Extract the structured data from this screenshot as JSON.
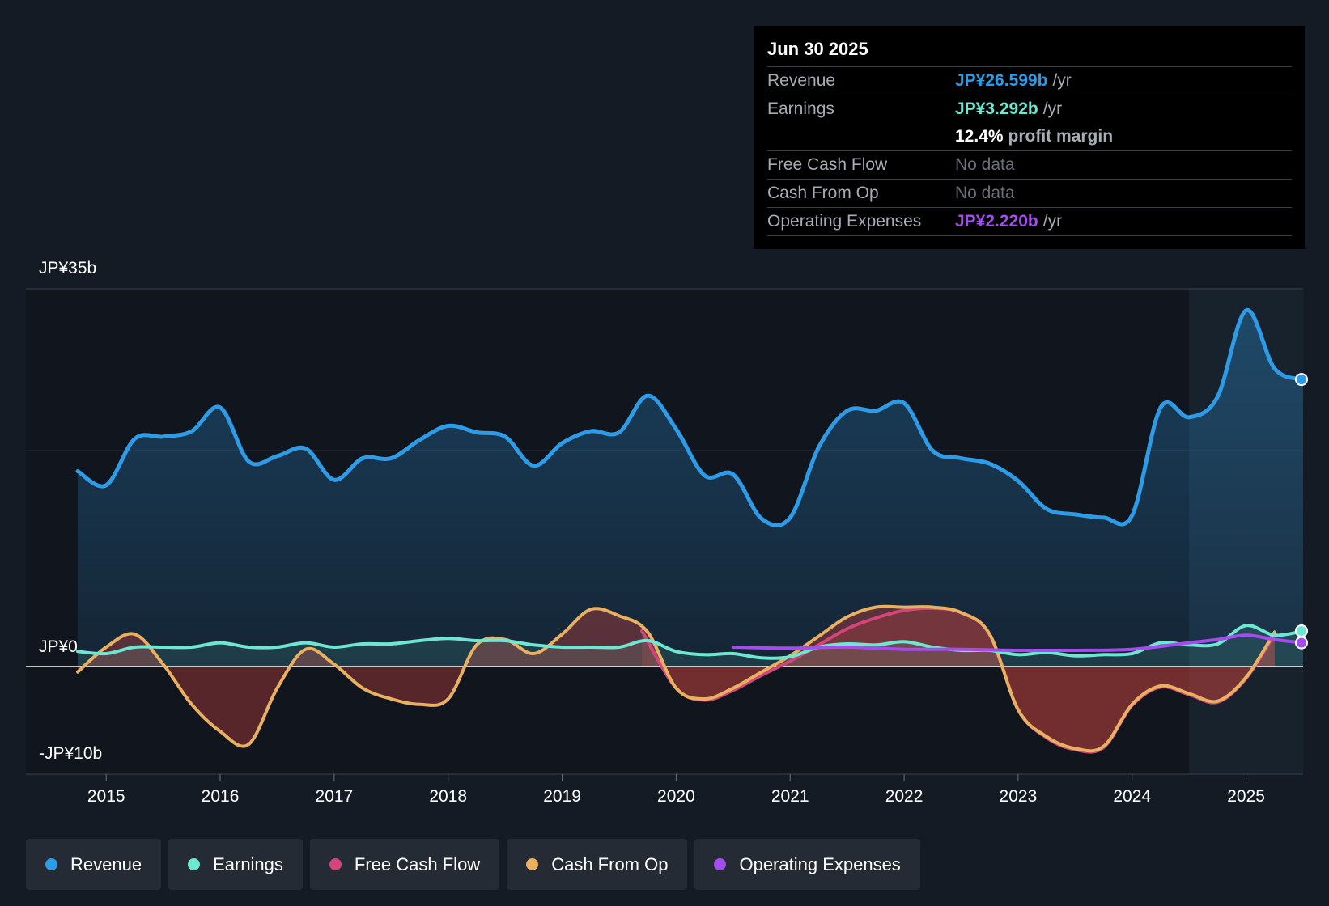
{
  "tooltip": {
    "date": "Jun 30 2025",
    "revenue_label": "Revenue",
    "revenue_value": "JP¥26.599b",
    "earnings_label": "Earnings",
    "earnings_value": "JP¥3.292b",
    "margin_value": "12.4%",
    "margin_label": "profit margin",
    "fcf_label": "Free Cash Flow",
    "fcf_value": "No data",
    "cfo_label": "Cash From Op",
    "cfo_value": "No data",
    "opex_label": "Operating Expenses",
    "opex_value": "JP¥2.220b",
    "unit": "/yr"
  },
  "legend": {
    "revenue": "Revenue",
    "earnings": "Earnings",
    "fcf": "Free Cash Flow",
    "cfo": "Cash From Op",
    "opex": "Operating Expenses"
  },
  "colors": {
    "revenue": "#2d9be6",
    "earnings": "#6ee6d1",
    "fcf": "#d4467a",
    "cfo": "#e8b060",
    "opex": "#a44cf0",
    "background": "#151b24"
  },
  "chart_data": {
    "type": "line",
    "title": "",
    "y_axis_labels": [
      "JP¥35b",
      "JP¥0",
      "-JP¥10b"
    ],
    "ylim": [
      -10,
      35
    ],
    "xlim": [
      2014.75,
      2025.5
    ],
    "x_ticks": [
      "2015",
      "2016",
      "2017",
      "2018",
      "2019",
      "2020",
      "2021",
      "2022",
      "2023",
      "2024",
      "2025"
    ],
    "forecast_region_start": 2024.5,
    "series": [
      {
        "name": "Revenue",
        "key": "revenue",
        "points": [
          [
            2014.75,
            18.1
          ],
          [
            2015.0,
            16.8
          ],
          [
            2015.25,
            21.1
          ],
          [
            2015.5,
            21.3
          ],
          [
            2015.75,
            21.8
          ],
          [
            2016.0,
            24.0
          ],
          [
            2016.25,
            19.0
          ],
          [
            2016.5,
            19.5
          ],
          [
            2016.75,
            20.2
          ],
          [
            2017.0,
            17.3
          ],
          [
            2017.25,
            19.3
          ],
          [
            2017.5,
            19.3
          ],
          [
            2017.75,
            21.0
          ],
          [
            2018.0,
            22.3
          ],
          [
            2018.25,
            21.7
          ],
          [
            2018.5,
            21.3
          ],
          [
            2018.75,
            18.6
          ],
          [
            2019.0,
            20.7
          ],
          [
            2019.25,
            21.8
          ],
          [
            2019.5,
            21.7
          ],
          [
            2019.75,
            25.1
          ],
          [
            2020.0,
            22.0
          ],
          [
            2020.25,
            17.7
          ],
          [
            2020.5,
            17.8
          ],
          [
            2020.75,
            13.7
          ],
          [
            2021.0,
            13.8
          ],
          [
            2021.25,
            20.3
          ],
          [
            2021.5,
            23.7
          ],
          [
            2021.75,
            23.7
          ],
          [
            2022.0,
            24.4
          ],
          [
            2022.25,
            20.0
          ],
          [
            2022.5,
            19.3
          ],
          [
            2022.75,
            18.8
          ],
          [
            2023.0,
            17.2
          ],
          [
            2023.25,
            14.6
          ],
          [
            2023.5,
            14.1
          ],
          [
            2023.75,
            13.8
          ],
          [
            2024.0,
            14.0
          ],
          [
            2024.25,
            24.0
          ],
          [
            2024.5,
            23.1
          ],
          [
            2024.75,
            25.0
          ],
          [
            2025.0,
            33.0
          ],
          [
            2025.25,
            27.6
          ],
          [
            2025.5,
            26.6
          ]
        ]
      },
      {
        "name": "Earnings",
        "key": "earnings",
        "points": [
          [
            2014.75,
            1.4
          ],
          [
            2015.0,
            1.2
          ],
          [
            2015.25,
            1.8
          ],
          [
            2015.5,
            1.8
          ],
          [
            2015.75,
            1.8
          ],
          [
            2016.0,
            2.2
          ],
          [
            2016.25,
            1.8
          ],
          [
            2016.5,
            1.8
          ],
          [
            2016.75,
            2.2
          ],
          [
            2017.0,
            1.8
          ],
          [
            2017.25,
            2.1
          ],
          [
            2017.5,
            2.1
          ],
          [
            2017.75,
            2.4
          ],
          [
            2018.0,
            2.6
          ],
          [
            2018.25,
            2.4
          ],
          [
            2018.5,
            2.4
          ],
          [
            2018.75,
            2.0
          ],
          [
            2019.0,
            1.8
          ],
          [
            2019.25,
            1.8
          ],
          [
            2019.5,
            1.8
          ],
          [
            2019.75,
            2.4
          ],
          [
            2020.0,
            1.4
          ],
          [
            2020.25,
            1.1
          ],
          [
            2020.5,
            1.2
          ],
          [
            2020.75,
            0.8
          ],
          [
            2021.0,
            0.9
          ],
          [
            2021.25,
            1.8
          ],
          [
            2021.5,
            2.1
          ],
          [
            2021.75,
            2.0
          ],
          [
            2022.0,
            2.3
          ],
          [
            2022.25,
            1.8
          ],
          [
            2022.5,
            1.5
          ],
          [
            2022.75,
            1.5
          ],
          [
            2023.0,
            1.1
          ],
          [
            2023.25,
            1.3
          ],
          [
            2023.5,
            1.0
          ],
          [
            2023.75,
            1.1
          ],
          [
            2024.0,
            1.2
          ],
          [
            2024.25,
            2.2
          ],
          [
            2024.5,
            2.0
          ],
          [
            2024.75,
            2.1
          ],
          [
            2025.0,
            3.8
          ],
          [
            2025.25,
            2.9
          ],
          [
            2025.5,
            3.3
          ]
        ]
      },
      {
        "name": "Cash From Op",
        "key": "cfo",
        "points": [
          [
            2014.75,
            -0.5
          ],
          [
            2015.0,
            1.8
          ],
          [
            2015.25,
            3.0
          ],
          [
            2015.5,
            0.2
          ],
          [
            2015.75,
            -3.5
          ],
          [
            2016.0,
            -6.0
          ],
          [
            2016.25,
            -7.2
          ],
          [
            2016.5,
            -2.0
          ],
          [
            2016.75,
            1.6
          ],
          [
            2017.0,
            0.2
          ],
          [
            2017.25,
            -2.0
          ],
          [
            2017.5,
            -3.0
          ],
          [
            2017.75,
            -3.5
          ],
          [
            2018.0,
            -3.0
          ],
          [
            2018.25,
            2.0
          ],
          [
            2018.5,
            2.5
          ],
          [
            2018.75,
            1.2
          ],
          [
            2019.0,
            3.0
          ],
          [
            2019.25,
            5.3
          ],
          [
            2019.5,
            4.7
          ],
          [
            2019.75,
            3.2
          ],
          [
            2020.0,
            -2.0
          ],
          [
            2020.25,
            -3.0
          ],
          [
            2020.5,
            -2.0
          ],
          [
            2020.75,
            -0.5
          ],
          [
            2021.0,
            1.0
          ],
          [
            2021.25,
            2.8
          ],
          [
            2021.5,
            4.6
          ],
          [
            2021.75,
            5.5
          ],
          [
            2022.0,
            5.5
          ],
          [
            2022.25,
            5.5
          ],
          [
            2022.5,
            5.0
          ],
          [
            2022.75,
            3.0
          ],
          [
            2023.0,
            -4.0
          ],
          [
            2023.25,
            -6.5
          ],
          [
            2023.5,
            -7.6
          ],
          [
            2023.75,
            -7.4
          ],
          [
            2024.0,
            -3.5
          ],
          [
            2024.25,
            -1.8
          ],
          [
            2024.5,
            -2.5
          ],
          [
            2024.75,
            -3.2
          ],
          [
            2025.0,
            -1.0
          ],
          [
            2025.25,
            3.2
          ]
        ]
      },
      {
        "name": "Free Cash Flow",
        "key": "fcf",
        "points": [
          [
            2019.7,
            3.3
          ],
          [
            2020.0,
            -2.0
          ],
          [
            2020.25,
            -3.1
          ],
          [
            2020.5,
            -2.2
          ],
          [
            2020.75,
            -0.8
          ],
          [
            2021.0,
            0.5
          ],
          [
            2021.25,
            2.0
          ],
          [
            2021.5,
            3.5
          ],
          [
            2021.75,
            4.5
          ],
          [
            2022.0,
            5.2
          ],
          [
            2022.25,
            5.4
          ],
          [
            2022.5,
            5.0
          ],
          [
            2022.75,
            3.0
          ],
          [
            2023.0,
            -4.0
          ],
          [
            2023.25,
            -6.6
          ],
          [
            2023.5,
            -7.7
          ],
          [
            2023.75,
            -7.5
          ],
          [
            2024.0,
            -3.6
          ],
          [
            2024.25,
            -1.9
          ],
          [
            2024.5,
            -2.6
          ],
          [
            2024.75,
            -3.3
          ],
          [
            2025.0,
            -1.1
          ],
          [
            2025.25,
            3.0
          ]
        ]
      },
      {
        "name": "Operating Expenses",
        "key": "opex",
        "points": [
          [
            2020.5,
            1.8
          ],
          [
            2021.0,
            1.7
          ],
          [
            2021.5,
            1.8
          ],
          [
            2022.0,
            1.6
          ],
          [
            2022.5,
            1.6
          ],
          [
            2023.0,
            1.5
          ],
          [
            2023.5,
            1.5
          ],
          [
            2024.0,
            1.6
          ],
          [
            2024.5,
            2.2
          ],
          [
            2024.75,
            2.5
          ],
          [
            2025.0,
            2.9
          ],
          [
            2025.25,
            2.5
          ],
          [
            2025.5,
            2.2
          ]
        ]
      }
    ]
  }
}
